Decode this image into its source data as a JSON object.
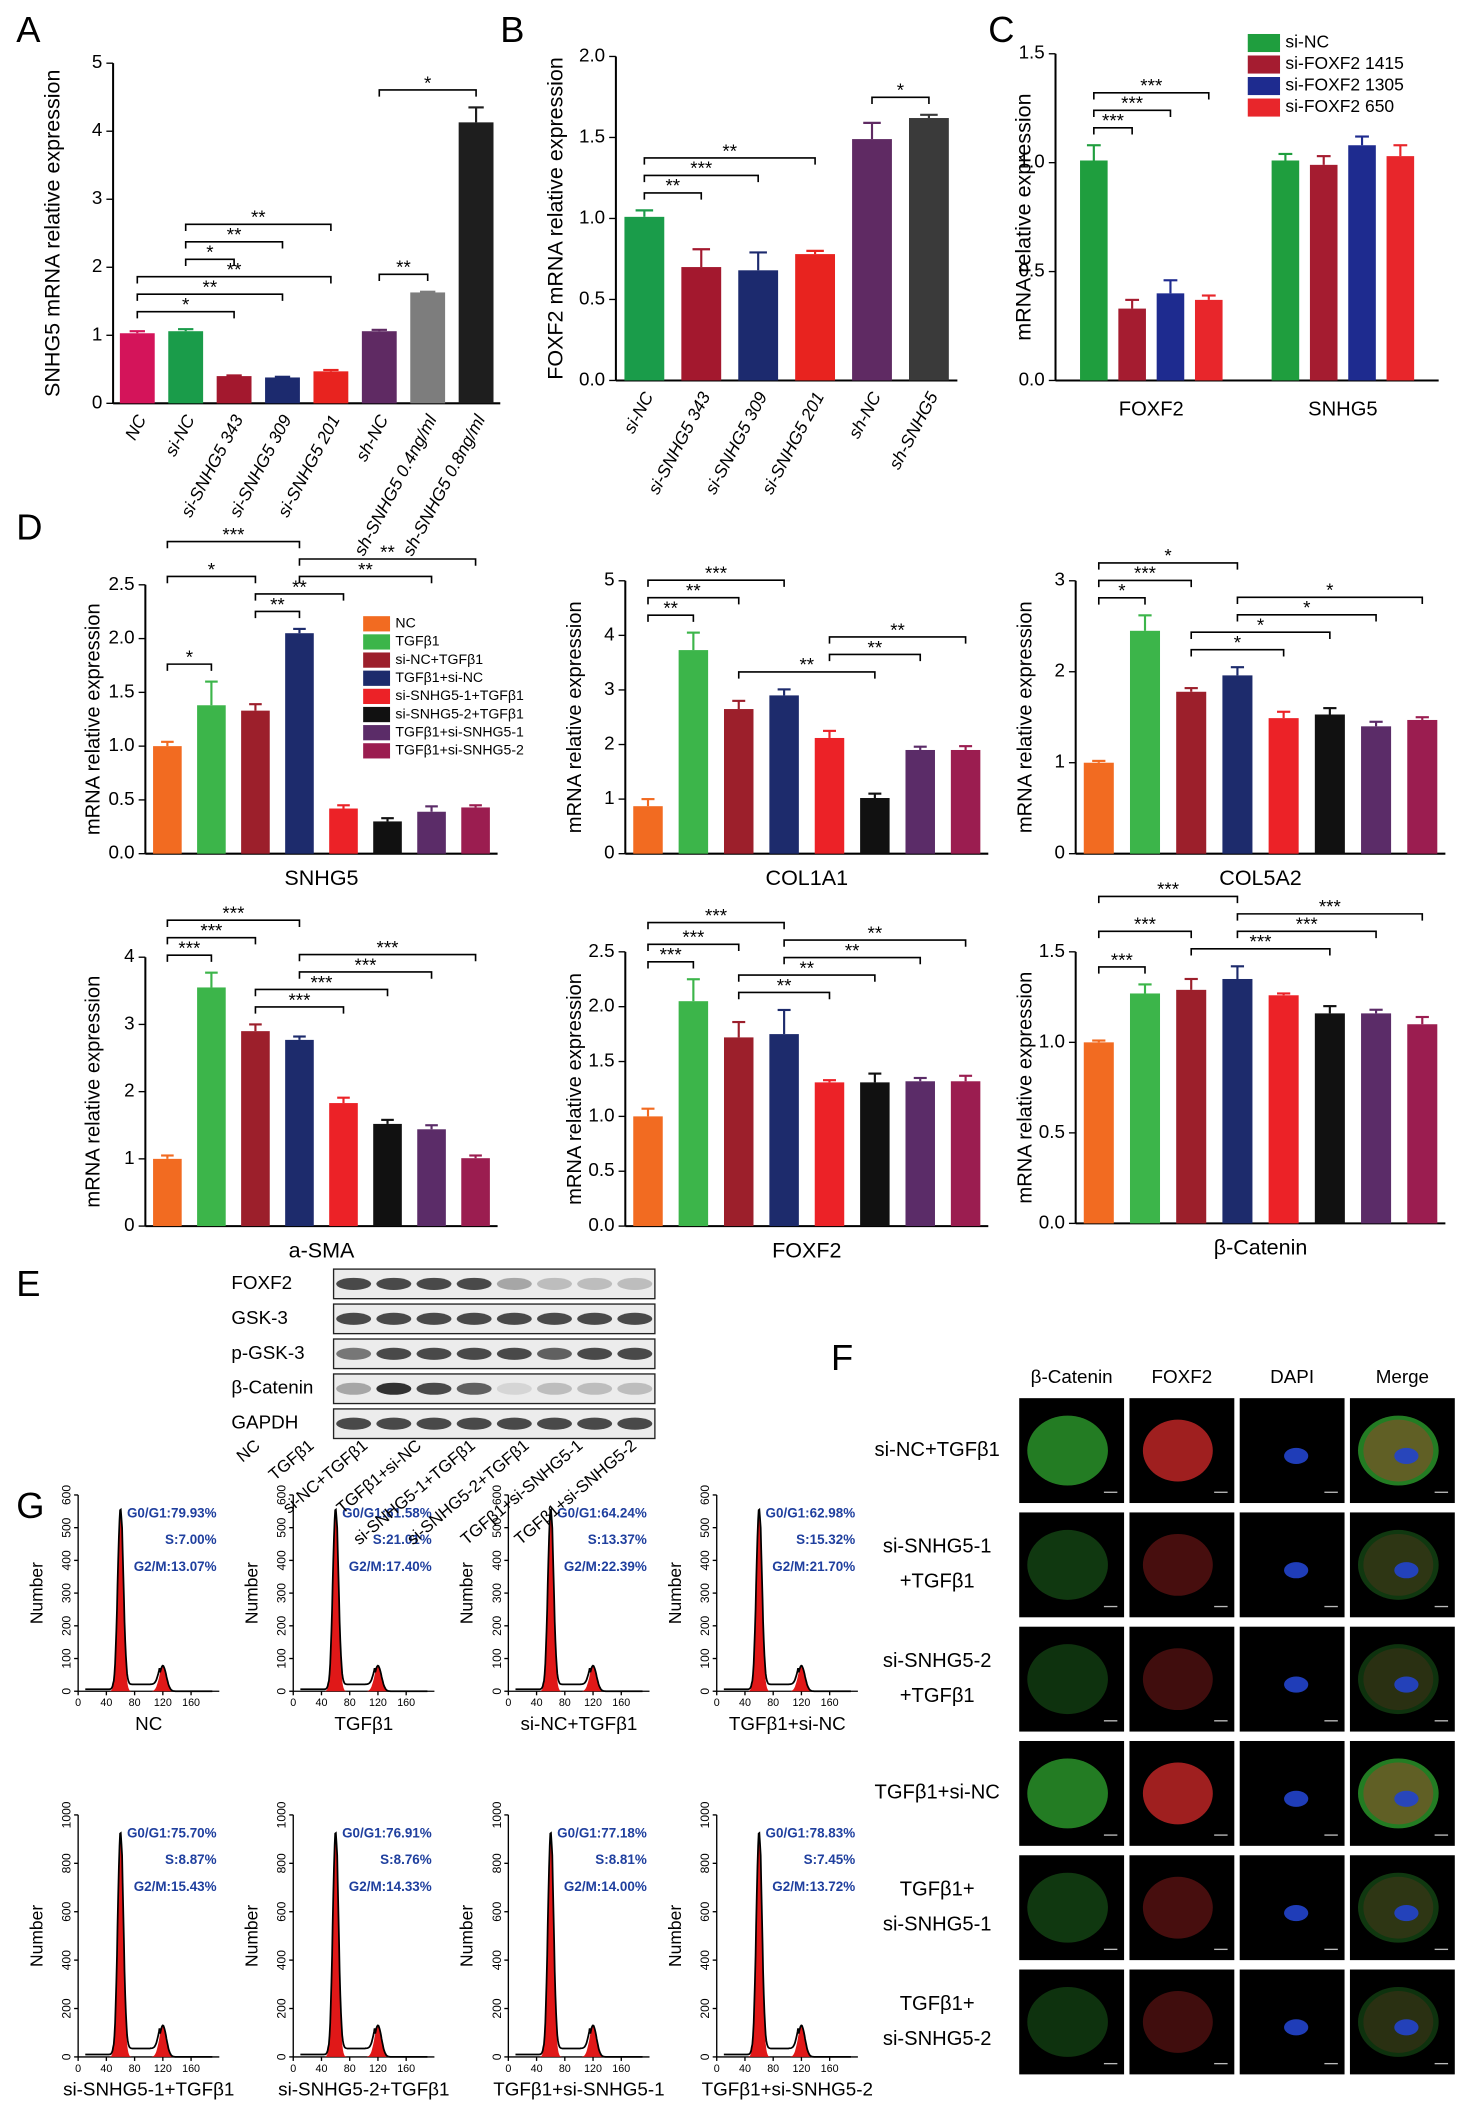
{
  "panel_labels": [
    "A",
    "B",
    "C",
    "D",
    "E",
    "F",
    "G"
  ],
  "chart_data": [
    {
      "type": "bar",
      "y_label": "SNHG5 mRNA relative expression",
      "categories": [
        "NC",
        "si-NC",
        "si-SNHG5 343",
        "si-SNHG5 309",
        "si-SNHG5 201",
        "sh-NC",
        "sh-SNHG5 0.4ng/ml",
        "sh-SNHG5 0.8ng/ml"
      ],
      "values": [
        1.03,
        1.06,
        0.4,
        0.38,
        0.47,
        1.06,
        1.63,
        4.13
      ],
      "errors": [
        0.03,
        0.03,
        0.01,
        0.01,
        0.02,
        0.02,
        0.01,
        0.22
      ],
      "colors": [
        "#d4145a",
        "#1a9c4a",
        "#a3182e",
        "#1c2a6e",
        "#e8231f",
        "#5f2a63",
        "#7d7d7d",
        "#1e1e1e"
      ],
      "ylim": [
        0,
        5
      ],
      "yticks": [
        0,
        1,
        2,
        3,
        4,
        5
      ],
      "brackets": [
        {
          "pair": [
            0,
            2
          ],
          "label": "*"
        },
        {
          "pair": [
            0,
            3
          ],
          "label": "**"
        },
        {
          "pair": [
            0,
            4
          ],
          "label": "**"
        },
        {
          "pair": [
            1,
            2
          ],
          "label": "*"
        },
        {
          "pair": [
            1,
            3
          ],
          "label": "**"
        },
        {
          "pair": [
            1,
            4
          ],
          "label": "**"
        },
        {
          "pair": [
            5,
            6
          ],
          "label": "**"
        },
        {
          "pair": [
            5,
            7
          ],
          "label": "*"
        }
      ]
    },
    {
      "type": "bar",
      "y_label": "FOXF2 mRNA relative expression",
      "categories": [
        "si-NC",
        "si-SNHG5 343",
        "si-SNHG5 309",
        "si-SNHG5 201",
        "sh-NC",
        "sh-SNHG5"
      ],
      "values": [
        1.01,
        0.7,
        0.68,
        0.78,
        1.49,
        1.62
      ],
      "errors": [
        0.04,
        0.11,
        0.11,
        0.02,
        0.1,
        0.02
      ],
      "colors": [
        "#1a9c4a",
        "#a3182e",
        "#1c2a6e",
        "#e8231f",
        "#5f2a63",
        "#3a3a3a"
      ],
      "ylim": [
        0,
        2
      ],
      "yticks": [
        {
          "value": 0,
          "label": "0.0"
        },
        0.5,
        {
          "value": 1,
          "label": "1.0"
        },
        1.5,
        {
          "value": 2,
          "label": "2.0"
        }
      ],
      "brackets": [
        {
          "pair": [
            0,
            1
          ],
          "label": "**"
        },
        {
          "pair": [
            0,
            2
          ],
          "label": "***"
        },
        {
          "pair": [
            0,
            3
          ],
          "label": "**"
        },
        {
          "pair": [
            4,
            5
          ],
          "label": "*"
        }
      ]
    },
    {
      "type": "grouped_bar",
      "y_label": "mRNA relative expression",
      "legend": "upper right",
      "categories": [
        "FOXF2",
        "SNHG5"
      ],
      "series": [
        {
          "name": "si-NC",
          "color": "#1f9e3e",
          "values": [
            1.01,
            1.01
          ],
          "errors": [
            0.07,
            0.03
          ]
        },
        {
          "name": "si-FOXF2 1415",
          "color": "#a51c30",
          "values": [
            0.33,
            0.99
          ],
          "errors": [
            0.04,
            0.04
          ]
        },
        {
          "name": "si-FOXF2 1305",
          "color": "#1e2b8f",
          "values": [
            0.4,
            1.08
          ],
          "errors": [
            0.06,
            0.04
          ]
        },
        {
          "name": "si-FOXF2  650",
          "color": "#e8262b",
          "values": [
            0.37,
            1.03
          ],
          "errors": [
            0.02,
            0.05
          ]
        }
      ],
      "ylim": [
        0,
        1.5
      ],
      "yticks": [
        {
          "value": 0,
          "label": "0.0"
        },
        0.5,
        {
          "value": 1,
          "label": "1.0"
        },
        1.5
      ],
      "brackets": [
        {
          "group": 0,
          "pair": [
            0,
            1
          ],
          "label": "***"
        },
        {
          "group": 0,
          "pair": [
            0,
            2
          ],
          "label": "***"
        },
        {
          "group": 0,
          "pair": [
            0,
            3
          ],
          "label": "***"
        }
      ]
    },
    {
      "type": "bar",
      "y_label": "mRNA relative expression",
      "x_label": "SNHG5",
      "legend": "upper right",
      "categories": [
        "NC",
        "TGFβ1",
        "si-NC+TGFβ1",
        "TGFβ1+si-NC",
        "si-SNHG5-1+TGFβ1",
        "si-SNHG5-2+TGFβ1",
        "TGFβ1+si-SNHG5-1",
        "TGFβ1+si-SNHG5-2"
      ],
      "values": [
        1.0,
        1.38,
        1.33,
        2.05,
        0.42,
        0.3,
        0.39,
        0.43
      ],
      "errors": [
        0.04,
        0.22,
        0.06,
        0.04,
        0.03,
        0.03,
        0.05,
        0.02
      ],
      "colors": [
        "#f26b21",
        "#3cb54a",
        "#9c1f2b",
        "#1d2b6c",
        "#ec2227",
        "#111111",
        "#5b2c68",
        "#9b1d50"
      ],
      "ylim": [
        0,
        2.5
      ],
      "yticks": [
        {
          "value": 0,
          "label": "0.0"
        },
        0.5,
        {
          "value": 1,
          "label": "1.0"
        },
        1.5,
        {
          "value": 2,
          "label": "2.0"
        },
        2.5
      ],
      "brackets": [
        {
          "pair": [
            2,
            3
          ],
          "label": "**"
        },
        {
          "pair": [
            2,
            4
          ],
          "label": "**"
        },
        {
          "pair": [
            3,
            6
          ],
          "label": "**"
        },
        {
          "pair": [
            3,
            7
          ],
          "label": "**"
        },
        {
          "pair": [
            0,
            1
          ],
          "label": "*"
        },
        {
          "pair": [
            0,
            2
          ],
          "label": "*"
        },
        {
          "pair": [
            0,
            3
          ],
          "label": "***"
        }
      ]
    },
    {
      "type": "bar",
      "y_label": "mRNA relative expression",
      "x_label": "COL1A1",
      "values": [
        0.87,
        3.73,
        2.65,
        2.9,
        2.12,
        1.02,
        1.9,
        1.9
      ],
      "errors": [
        0.13,
        0.32,
        0.15,
        0.11,
        0.13,
        0.08,
        0.06,
        0.07
      ],
      "colors": [
        "#f26b21",
        "#3cb54a",
        "#9c1f2b",
        "#1d2b6c",
        "#ec2227",
        "#111111",
        "#5b2c68",
        "#9b1d50"
      ],
      "ylim": [
        0,
        5
      ],
      "yticks": [
        0,
        1,
        2,
        3,
        4,
        5
      ],
      "brackets": [
        {
          "pair": [
            2,
            5
          ],
          "label": "**"
        },
        {
          "pair": [
            4,
            6
          ],
          "label": "**"
        },
        {
          "pair": [
            4,
            7
          ],
          "label": "**"
        },
        {
          "pair": [
            0,
            1
          ],
          "label": "**"
        },
        {
          "pair": [
            0,
            2
          ],
          "label": "**"
        },
        {
          "pair": [
            0,
            3
          ],
          "label": "***"
        }
      ]
    },
    {
      "type": "bar",
      "y_label": "mRNA relative expression",
      "x_label": "COL5A2",
      "values": [
        1.0,
        2.45,
        1.78,
        1.96,
        1.49,
        1.53,
        1.4,
        1.47
      ],
      "errors": [
        0.02,
        0.17,
        0.04,
        0.09,
        0.07,
        0.07,
        0.05,
        0.03
      ],
      "colors": [
        "#f26b21",
        "#3cb54a",
        "#9c1f2b",
        "#1d2b6c",
        "#ec2227",
        "#111111",
        "#5b2c68",
        "#9b1d50"
      ],
      "ylim": [
        0,
        3
      ],
      "yticks": [
        0,
        1,
        2,
        3
      ],
      "brackets": [
        {
          "pair": [
            2,
            4
          ],
          "label": "*"
        },
        {
          "pair": [
            2,
            5
          ],
          "label": "*"
        },
        {
          "pair": [
            3,
            6
          ],
          "label": "*"
        },
        {
          "pair": [
            3,
            7
          ],
          "label": "*"
        },
        {
          "pair": [
            0,
            1
          ],
          "label": "*"
        },
        {
          "pair": [
            0,
            2
          ],
          "label": "***"
        },
        {
          "pair": [
            0,
            3
          ],
          "label": "*"
        }
      ]
    },
    {
      "type": "bar",
      "y_label": "mRNA relative expression",
      "x_label": "a-SMA",
      "values": [
        1.0,
        3.55,
        2.9,
        2.77,
        1.83,
        1.52,
        1.44,
        1.01
      ],
      "errors": [
        0.05,
        0.22,
        0.1,
        0.05,
        0.08,
        0.06,
        0.06,
        0.04
      ],
      "colors": [
        "#f26b21",
        "#3cb54a",
        "#9c1f2b",
        "#1d2b6c",
        "#ec2227",
        "#111111",
        "#5b2c68",
        "#9b1d50"
      ],
      "ylim": [
        0,
        4
      ],
      "yticks": [
        0,
        1,
        2,
        3,
        4
      ],
      "brackets": [
        {
          "pair": [
            2,
            4
          ],
          "label": "***"
        },
        {
          "pair": [
            2,
            5
          ],
          "label": "***"
        },
        {
          "pair": [
            3,
            6
          ],
          "label": "***"
        },
        {
          "pair": [
            3,
            7
          ],
          "label": "***"
        },
        {
          "pair": [
            0,
            1
          ],
          "label": "***"
        },
        {
          "pair": [
            0,
            2
          ],
          "label": "***"
        },
        {
          "pair": [
            0,
            3
          ],
          "label": "***"
        }
      ]
    },
    {
      "type": "bar",
      "y_label": "mRNA relative expression",
      "x_label": "FOXF2",
      "values": [
        1.0,
        2.05,
        1.72,
        1.75,
        1.31,
        1.31,
        1.32,
        1.32
      ],
      "errors": [
        0.07,
        0.2,
        0.14,
        0.22,
        0.02,
        0.08,
        0.03,
        0.05
      ],
      "colors": [
        "#f26b21",
        "#3cb54a",
        "#9c1f2b",
        "#1d2b6c",
        "#ec2227",
        "#111111",
        "#5b2c68",
        "#9b1d50"
      ],
      "ylim": [
        0,
        2.5
      ],
      "yticks": [
        {
          "value": 0,
          "label": "0.0"
        },
        0.5,
        {
          "value": 1,
          "label": "1.0"
        },
        1.5,
        {
          "value": 2,
          "label": "2.0"
        },
        2.5
      ],
      "brackets": [
        {
          "pair": [
            2,
            4
          ],
          "label": "**"
        },
        {
          "pair": [
            2,
            5
          ],
          "label": "**"
        },
        {
          "pair": [
            3,
            6
          ],
          "label": "**"
        },
        {
          "pair": [
            3,
            7
          ],
          "label": "**"
        },
        {
          "pair": [
            0,
            1
          ],
          "label": "***"
        },
        {
          "pair": [
            0,
            2
          ],
          "label": "***"
        },
        {
          "pair": [
            0,
            3
          ],
          "label": "***"
        }
      ]
    },
    {
      "type": "bar",
      "y_label": "mRNA relative expression",
      "x_label": "β-Catenin",
      "values": [
        1.0,
        1.27,
        1.29,
        1.35,
        1.26,
        1.16,
        1.16,
        1.1
      ],
      "errors": [
        0.01,
        0.05,
        0.06,
        0.07,
        0.01,
        0.04,
        0.02,
        0.04
      ],
      "colors": [
        "#f26b21",
        "#3cb54a",
        "#9c1f2b",
        "#1d2b6c",
        "#ec2227",
        "#111111",
        "#5b2c68",
        "#9b1d50"
      ],
      "ylim": [
        0,
        1.5
      ],
      "yticks": [
        {
          "value": 0,
          "label": "0.0"
        },
        0.5,
        {
          "value": 1,
          "label": "1.0"
        },
        1.5
      ],
      "brackets": [
        {
          "pair": [
            2,
            5
          ],
          "label": "***"
        },
        {
          "pair": [
            3,
            6
          ],
          "label": "***"
        },
        {
          "pair": [
            3,
            7
          ],
          "label": "***"
        },
        {
          "pair": [
            0,
            1
          ],
          "label": "***"
        },
        {
          "pair": [
            0,
            2
          ],
          "label": "***"
        },
        {
          "pair": [
            0,
            3
          ],
          "label": "***"
        }
      ]
    },
    {
      "type": "flow",
      "y_label": "Number",
      "x_label": "NC",
      "stats": [
        "G0/G1:79.93%",
        "S:7.00%",
        "G2/M:13.07%"
      ],
      "xlim": [
        0,
        200
      ],
      "xticks": [
        0,
        40,
        80,
        120,
        160
      ],
      "ylim": [
        0,
        600
      ],
      "yticks": [
        0,
        100,
        200,
        300,
        400,
        500,
        600
      ]
    },
    {
      "type": "flow",
      "y_label": "Number",
      "x_label": "TGFβ1",
      "stats": [
        "G0/G1:61.58%",
        "S:21.01%",
        "G2/M:17.40%"
      ],
      "xlim": [
        0,
        200
      ],
      "xticks": [
        0,
        40,
        80,
        120,
        160
      ],
      "ylim": [
        0,
        600
      ],
      "yticks": [
        0,
        100,
        200,
        300,
        400,
        500,
        600
      ]
    },
    {
      "type": "flow",
      "y_label": "Number",
      "x_label": "si-NC+TGFβ1",
      "stats": [
        "G0/G1:64.24%",
        "S:13.37%",
        "G2/M:22.39%"
      ],
      "xlim": [
        0,
        200
      ],
      "xticks": [
        0,
        40,
        80,
        120,
        160
      ],
      "ylim": [
        0,
        600
      ],
      "yticks": [
        0,
        100,
        200,
        300,
        400,
        500,
        600
      ]
    },
    {
      "type": "flow",
      "y_label": "Number",
      "x_label": "TGFβ1+si-NC",
      "stats": [
        "G0/G1:62.98%",
        "S:15.32%",
        "G2/M:21.70%"
      ],
      "xlim": [
        0,
        200
      ],
      "xticks": [
        0,
        40,
        80,
        120,
        160
      ],
      "ylim": [
        0,
        600
      ],
      "yticks": [
        0,
        100,
        200,
        300,
        400,
        500,
        600
      ]
    },
    {
      "type": "flow",
      "y_label": "Number",
      "x_label": "si-SNHG5-1+TGFβ1",
      "stats": [
        "G0/G1:75.70%",
        "S:8.87%",
        "G2/M:15.43%"
      ],
      "xlim": [
        0,
        200
      ],
      "xticks": [
        0,
        40,
        80,
        120,
        160
      ],
      "ylim": [
        0,
        1000
      ],
      "yticks": [
        0,
        200,
        400,
        600,
        800,
        1000
      ]
    },
    {
      "type": "flow",
      "y_label": "Number",
      "x_label": "si-SNHG5-2+TGFβ1",
      "stats": [
        "G0/G1:76.91%",
        "S:8.76%",
        "G2/M:14.33%"
      ],
      "xlim": [
        0,
        200
      ],
      "xticks": [
        0,
        40,
        80,
        120,
        160
      ],
      "ylim": [
        0,
        1000
      ],
      "yticks": [
        0,
        200,
        400,
        600,
        800,
        1000
      ]
    },
    {
      "type": "flow",
      "y_label": "Number",
      "x_label": "TGFβ1+si-SNHG5-1",
      "stats": [
        "G0/G1:77.18%",
        "S:8.81%",
        "G2/M:14.00%"
      ],
      "xlim": [
        0,
        200
      ],
      "xticks": [
        0,
        40,
        80,
        120,
        160
      ],
      "ylim": [
        0,
        1000
      ],
      "yticks": [
        0,
        200,
        400,
        600,
        800,
        1000
      ]
    },
    {
      "type": "flow",
      "y_label": "Number",
      "x_label": "TGFβ1+si-SNHG5-2",
      "stats": [
        "G0/G1:78.83%",
        "S:7.45%",
        "G2/M:13.72%"
      ],
      "xlim": [
        0,
        200
      ],
      "xticks": [
        0,
        40,
        80,
        120,
        160
      ],
      "ylim": [
        0,
        1000
      ],
      "yticks": [
        0,
        200,
        400,
        600,
        800,
        1000
      ]
    }
  ],
  "western_blot": {
    "rows": [
      "FOXF2",
      "GSK-3",
      "p-GSK-3",
      "β-Catenin",
      "GAPDH"
    ],
    "lanes": [
      "NC",
      "TGFβ1",
      "si-NC+TGFβ1",
      "TGFβ1+si-NC",
      "si-SNHG5-1+TGFβ1",
      "si-SNHG5-2+TGFβ1",
      "TGFβ1+si-SNHG5-1",
      "TGFβ1+si-SNHG5-2"
    ]
  },
  "immunofluorescence": {
    "columns": [
      "β-Catenin",
      "FOXF2",
      "DAPI",
      "Merge"
    ],
    "rows": [
      [
        "si-NC+TGFβ1"
      ],
      [
        "si-SNHG5-1",
        "+TGFβ1"
      ],
      [
        "si-SNHG5-2",
        "+TGFβ1"
      ],
      [
        "TGFβ1+si-NC"
      ],
      [
        "TGFβ1+",
        "si-SNHG5-1"
      ],
      [
        "TGFβ1+",
        "si-SNHG5-2"
      ]
    ]
  }
}
